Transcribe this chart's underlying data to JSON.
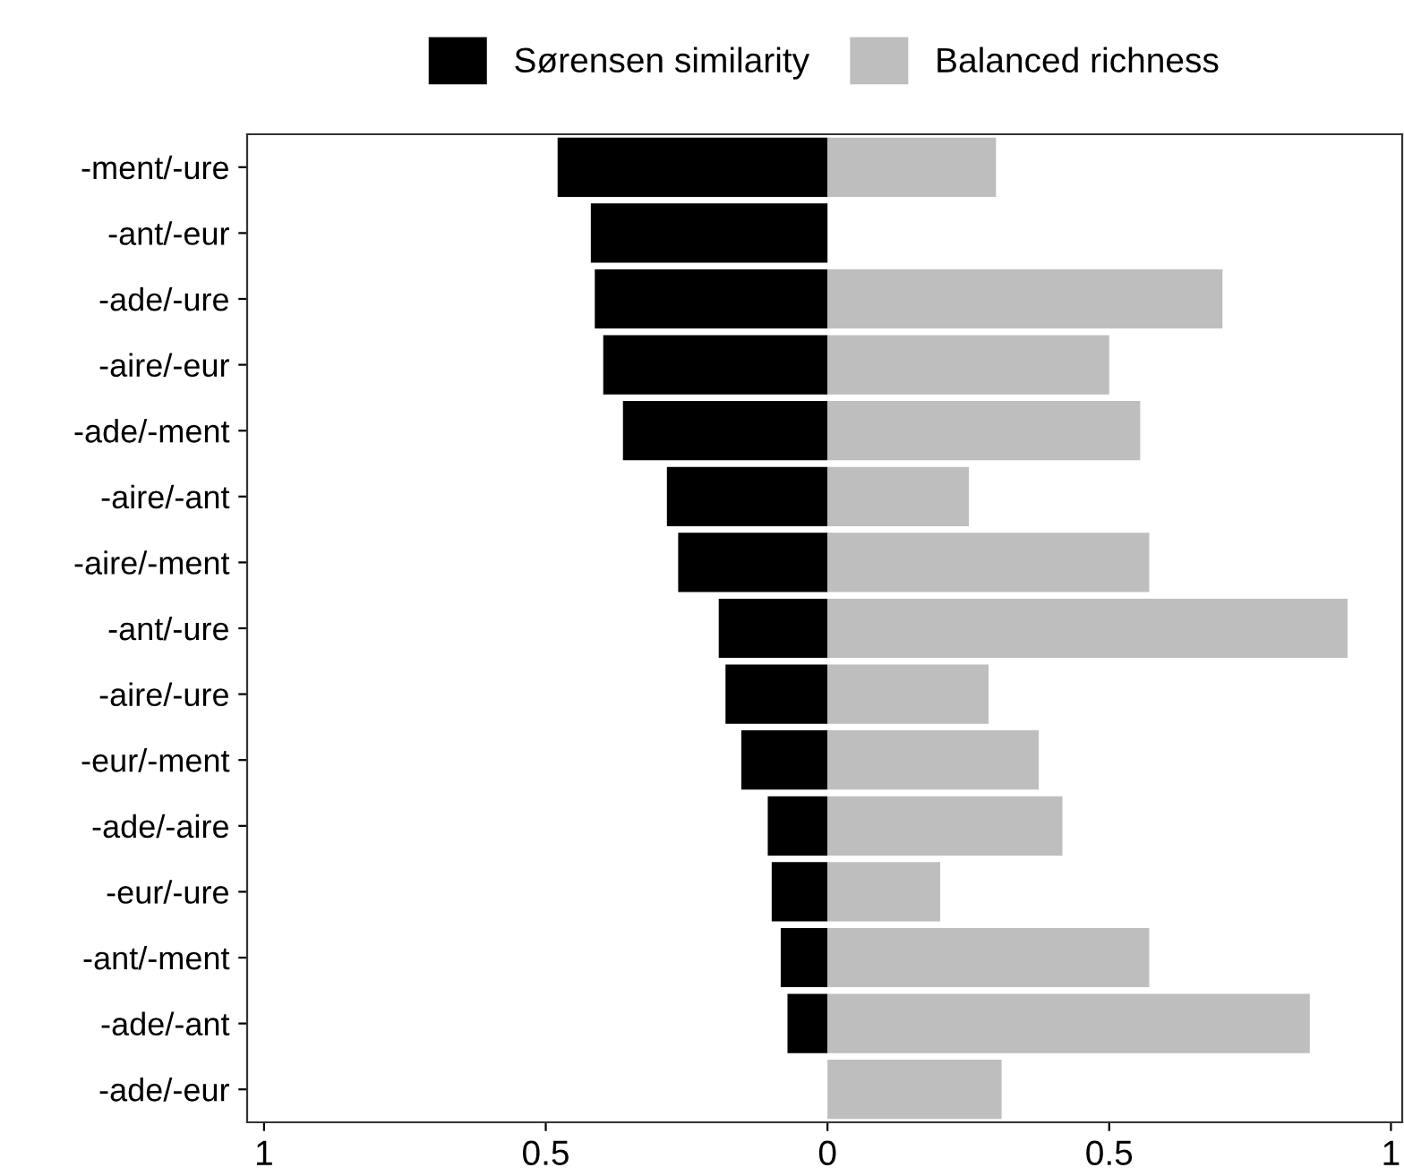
{
  "chart_data": {
    "type": "bar",
    "orientation": "horizontal",
    "stacked": true,
    "categories": [
      "-ment/-ure",
      "-ant/-eur",
      "-ade/-ure",
      "-aire/-eur",
      "-ade/-ment",
      "-aire/-ant",
      "-aire/-ment",
      "-ant/-ure",
      "-aire/-ure",
      "-eur/-ment",
      "-ade/-aire",
      "-eur/-ure",
      "-ant/-ment",
      "-ade/-ant",
      "-ade/-eur"
    ],
    "series": [
      {
        "name": "Sørensen similarity",
        "color": "#000000",
        "values": [
          -0.479,
          -0.42,
          -0.413,
          -0.398,
          -0.363,
          -0.285,
          -0.265,
          -0.193,
          -0.181,
          -0.153,
          -0.106,
          -0.099,
          -0.083,
          -0.071,
          0
        ]
      },
      {
        "name": "Balanced richness",
        "color": "#bebebe",
        "values": [
          0.299,
          0,
          0.701,
          0.5,
          0.555,
          0.251,
          0.571,
          0.923,
          0.286,
          0.375,
          0.417,
          0.2,
          0.571,
          0.856,
          0.309
        ]
      }
    ],
    "xlim": [
      -1.03,
      1.02
    ],
    "xticks": [
      {
        "value": -1,
        "label": "1"
      },
      {
        "value": -0.5,
        "label": "0.5"
      },
      0,
      0.5,
      1
    ],
    "legend": "top",
    "grid": false
  }
}
